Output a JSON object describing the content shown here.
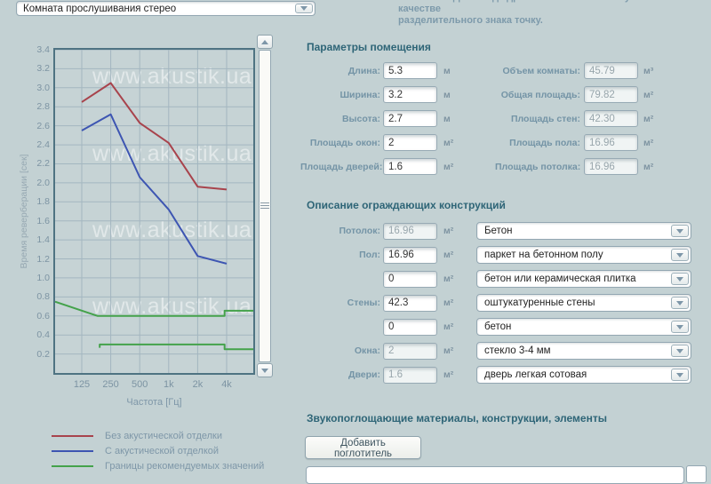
{
  "room_type_select": {
    "value": "Комната прослушивания стерео"
  },
  "hint": {
    "line1_clipped": "Внимание! Для ввода дробных чисел используйте в качестве",
    "line2": "разделительного знака точку."
  },
  "chart_data": {
    "type": "line",
    "title": "",
    "xlabel": "Частота [Гц]",
    "ylabel": "Время реверберации [сек]",
    "x_ticks": [
      "125",
      "250",
      "500",
      "1k",
      "2k",
      "4k"
    ],
    "ylim": [
      0,
      3.4
    ],
    "y_tick_min": 0.2,
    "y_tick_max": 3.4,
    "y_tick_step": 0.2,
    "grid": true,
    "legend_position": "bottom-left",
    "watermark": "www.akustik.ua",
    "x_axis_positions": "0 = left plot edge, 1..6 = ticks 125..4k, 7 = right plot edge",
    "series": [
      {
        "name": "Без акустической отделки",
        "color": "#a8434c",
        "x_pos": [
          1,
          2,
          3,
          4,
          5,
          6
        ],
        "values": [
          2.85,
          3.05,
          2.63,
          2.42,
          1.96,
          1.93
        ]
      },
      {
        "name": "С акустической отделкой",
        "color": "#3d55b2",
        "x_pos": [
          1,
          2,
          3,
          4,
          5,
          6
        ],
        "values": [
          2.55,
          2.72,
          2.06,
          1.72,
          1.23,
          1.15
        ]
      },
      {
        "name": "Границы рекомендуемых значений",
        "color": "#44a24b",
        "segments": [
          {
            "x_pos": [
              0,
              1.55,
              5.93,
              5.93,
              7
            ],
            "values": [
              0.75,
              0.6,
              0.6,
              0.655,
              0.655
            ]
          },
          {
            "x_pos": [
              1.62,
              1.62,
              5.93,
              5.93,
              7
            ],
            "values": [
              0.265,
              0.3,
              0.3,
              0.25,
              0.25
            ]
          }
        ]
      }
    ]
  },
  "room_params": {
    "title": "Параметры помещения",
    "left_rows": [
      {
        "label": "Длина:",
        "value": "5.3",
        "unit": "м"
      },
      {
        "label": "Ширина:",
        "value": "3.2",
        "unit": "м"
      },
      {
        "label": "Высота:",
        "value": "2.7",
        "unit": "м"
      },
      {
        "label": "Площадь окон:",
        "value": "2",
        "unit": "м²"
      },
      {
        "label": "Площадь дверей:",
        "value": "1.6",
        "unit": "м²"
      }
    ],
    "right_rows": [
      {
        "label": "Объем комнаты:",
        "value": "45.79",
        "unit": "м³"
      },
      {
        "label": "Общая площадь:",
        "value": "79.82",
        "unit": "м²"
      },
      {
        "label": "Площадь стен:",
        "value": "42.30",
        "unit": "м²"
      },
      {
        "label": "Площадь пола:",
        "value": "16.96",
        "unit": "м²"
      },
      {
        "label": "Площадь потолка:",
        "value": "16.96",
        "unit": "м²"
      }
    ]
  },
  "constructions": {
    "title": "Описание ограждающих конструкций",
    "rows": [
      {
        "label": "Потолок:",
        "value": "16.96",
        "unit": "м²",
        "select": "Бетон"
      },
      {
        "label": "Пол:",
        "value": "16.96",
        "unit": "м²",
        "select": "паркет на бетонном полу"
      },
      {
        "label": "",
        "value": "0",
        "unit": "м²",
        "select": "бетон или керамическая плитка"
      },
      {
        "label": "Стены:",
        "value": "42.3",
        "unit": "м²",
        "select": "оштукатуренные стены"
      },
      {
        "label": "",
        "value": "0",
        "unit": "м²",
        "select": "бетон"
      },
      {
        "label": "Окна:",
        "value": "2",
        "unit": "м²",
        "select": "стекло 3-4 мм"
      },
      {
        "label": "Двери:",
        "value": "1.6",
        "unit": "м²",
        "select": "дверь легкая сотовая"
      }
    ]
  },
  "absorbers": {
    "title": "Звукопоглощающие материалы, конструкции, элементы",
    "add_button": "Добавить поглотитель"
  }
}
